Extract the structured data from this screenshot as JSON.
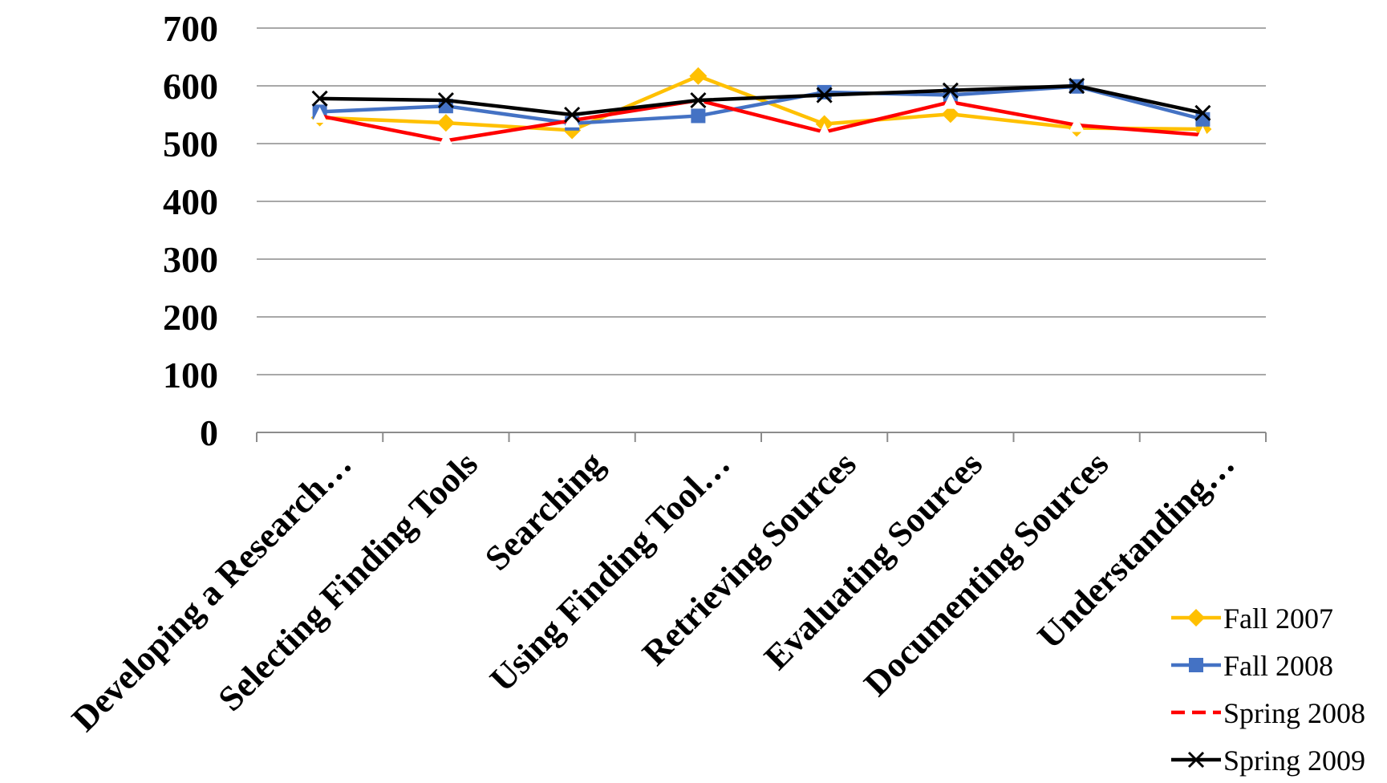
{
  "chart_data": {
    "type": "line",
    "categories": [
      "Developing a Research…",
      "Selecting Finding Tools",
      "Searching",
      "Using Finding Tool…",
      "Retrieving Sources",
      "Evaluating Sources",
      "Documenting Sources",
      "Understanding…"
    ],
    "ylim": [
      0,
      700
    ],
    "yticks": [
      0,
      100,
      200,
      300,
      400,
      500,
      600,
      700
    ],
    "grid": true,
    "legend_position": "bottom-right",
    "series": [
      {
        "name": "Fall 2007",
        "color": "#FFC000",
        "marker": "diamond",
        "dash": false,
        "values": [
          545,
          536,
          523,
          617,
          534,
          551,
          527,
          525
        ]
      },
      {
        "name": "Fall 2008",
        "color": "#4472C4",
        "marker": "square",
        "dash": false,
        "values": [
          555,
          565,
          535,
          548,
          589,
          584,
          599,
          542
        ]
      },
      {
        "name": "Spring 2008",
        "color": "#FF0000",
        "marker": "triangle",
        "dash": true,
        "values": [
          548,
          505,
          540,
          575,
          520,
          572,
          532,
          515
        ]
      },
      {
        "name": "Spring 2009",
        "color": "#000000",
        "marker": "x",
        "dash": false,
        "values": [
          578,
          575,
          550,
          575,
          584,
          592,
          600,
          553
        ]
      }
    ]
  }
}
